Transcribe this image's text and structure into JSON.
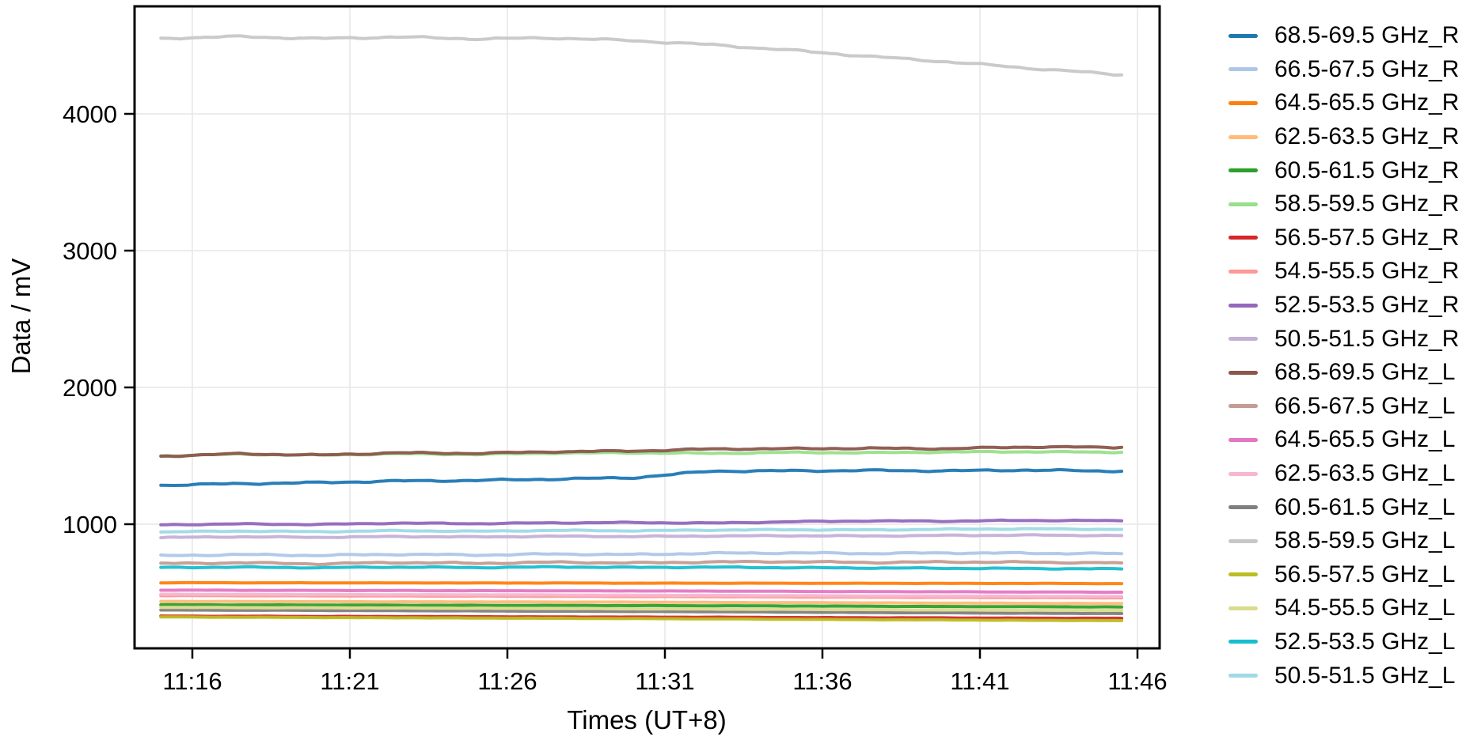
{
  "figure": {
    "background": "#ffffff",
    "plot_border_color": "#000000",
    "gridline_color": "#e6e6e6",
    "tick_color": "#000000",
    "text_color": "#000000"
  },
  "chart_data": {
    "type": "line",
    "title": "",
    "xlabel": "Times (UT+8)",
    "ylabel": "Data / mV",
    "grid": true,
    "legend_position": "right-outside",
    "x_tick_labels": [
      "11:16",
      "11:21",
      "11:26",
      "11:31",
      "11:36",
      "11:41",
      "11:46"
    ],
    "x_tick_minutes": [
      0,
      5,
      10,
      15,
      20,
      25,
      30
    ],
    "y_tick_labels": [
      "1000",
      "2000",
      "3000",
      "4000"
    ],
    "y_ticks": [
      1000,
      2000,
      3000,
      4000
    ],
    "xlim_minutes": [
      -1.85,
      30.7
    ],
    "ylim": [
      90,
      4790
    ],
    "x_minutes": [
      -1,
      1.5,
      4,
      6.5,
      9,
      11.5,
      14,
      16.5,
      19,
      21.5,
      24,
      26.5,
      29.5
    ],
    "series": [
      {
        "name": "68.5-69.5 GHz_R",
        "color": "#1f77b4",
        "wiggle": 7,
        "values": [
          1285,
          1296,
          1304,
          1316,
          1320,
          1330,
          1340,
          1388,
          1390,
          1393,
          1390,
          1396,
          1387
        ]
      },
      {
        "name": "66.5-67.5 GHz_R",
        "color": "#aec7e8",
        "wiggle": 6,
        "values": [
          770,
          778,
          772,
          780,
          775,
          782,
          778,
          788,
          790,
          786,
          790,
          788,
          785
        ]
      },
      {
        "name": "64.5-65.5 GHz_R",
        "color": "#ff7f0e",
        "wiggle": 1,
        "values": [
          572,
          572,
          571,
          571,
          570,
          570,
          569,
          569,
          568,
          568,
          567,
          567,
          566
        ]
      },
      {
        "name": "62.5-63.5 GHz_R",
        "color": "#ffbb78",
        "wiggle": 1,
        "values": [
          436,
          435,
          434,
          433,
          432,
          431,
          430,
          428,
          427,
          425,
          423,
          422,
          420
        ]
      },
      {
        "name": "60.5-61.5 GHz_R",
        "color": "#2ca02c",
        "wiggle": 1,
        "values": [
          411,
          410,
          409,
          408,
          407,
          406,
          405,
          404,
          402,
          400,
          398,
          397,
          395
        ]
      },
      {
        "name": "58.5-59.5 GHz_R",
        "color": "#98df8a",
        "wiggle": 5,
        "values": [
          1500,
          1512,
          1505,
          1515,
          1510,
          1520,
          1522,
          1518,
          1525,
          1522,
          1528,
          1530,
          1526
        ]
      },
      {
        "name": "56.5-57.5 GHz_R",
        "color": "#d62728",
        "wiggle": 1,
        "values": [
          328,
          327,
          326,
          325,
          324,
          322,
          321,
          320,
          318,
          316,
          315,
          313,
          312
        ]
      },
      {
        "name": "54.5-55.5 GHz_R",
        "color": "#ff9896",
        "wiggle": 1,
        "values": [
          478,
          477,
          476,
          475,
          474,
          472,
          471,
          470,
          468,
          466,
          465,
          463,
          462
        ]
      },
      {
        "name": "52.5-53.5 GHz_R",
        "color": "#9467bd",
        "wiggle": 4,
        "values": [
          996,
          1002,
          998,
          1008,
          1004,
          1010,
          1012,
          1008,
          1018,
          1024,
          1022,
          1028,
          1025
        ]
      },
      {
        "name": "50.5-51.5 GHz_R",
        "color": "#c5b0d5",
        "wiggle": 4,
        "values": [
          902,
          908,
          904,
          910,
          907,
          912,
          910,
          914,
          916,
          914,
          918,
          920,
          917
        ]
      },
      {
        "name": "68.5-69.5 GHz_L",
        "color": "#8c564b",
        "wiggle": 6,
        "values": [
          1497,
          1515,
          1505,
          1522,
          1518,
          1530,
          1535,
          1550,
          1552,
          1555,
          1552,
          1565,
          1562
        ]
      },
      {
        "name": "66.5-67.5 GHz_L",
        "color": "#c49c94",
        "wiggle": 6,
        "values": [
          712,
          718,
          710,
          720,
          714,
          722,
          716,
          724,
          726,
          720,
          724,
          722,
          717
        ]
      },
      {
        "name": "64.5-65.5 GHz_L",
        "color": "#e377c2",
        "wiggle": 1,
        "values": [
          518,
          517,
          516,
          515,
          514,
          513,
          512,
          511,
          509,
          507,
          506,
          504,
          503
        ]
      },
      {
        "name": "62.5-63.5 GHz_L",
        "color": "#f7b6d2",
        "wiggle": 1,
        "values": [
          488,
          487,
          486,
          485,
          484,
          483,
          481,
          480,
          478,
          476,
          475,
          473,
          472
        ]
      },
      {
        "name": "60.5-61.5 GHz_L",
        "color": "#7f7f7f",
        "wiggle": 1,
        "values": [
          373,
          371,
          370,
          368,
          366,
          364,
          362,
          360,
          357,
          354,
          352,
          349,
          347
        ]
      },
      {
        "name": "58.5-59.5 GHz_L",
        "color": "#c7c7c7",
        "wiggle": 8,
        "values": [
          4552,
          4565,
          4550,
          4562,
          4548,
          4555,
          4535,
          4505,
          4465,
          4420,
          4380,
          4335,
          4285
        ]
      },
      {
        "name": "56.5-57.5 GHz_L",
        "color": "#bcbd22",
        "wiggle": 1,
        "values": [
          322,
          320,
          318,
          316,
          314,
          312,
          310,
          308,
          305,
          302,
          300,
          297,
          295
        ]
      },
      {
        "name": "54.5-55.5 GHz_L",
        "color": "#dbdb8d",
        "wiggle": 1,
        "values": [
          392,
          390,
          389,
          387,
          385,
          383,
          381,
          379,
          377,
          375,
          373,
          371,
          370
        ]
      },
      {
        "name": "52.5-53.5 GHz_L",
        "color": "#17becf",
        "wiggle": 4,
        "values": [
          683,
          686,
          682,
          687,
          683,
          688,
          684,
          686,
          682,
          680,
          678,
          676,
          673
        ]
      },
      {
        "name": "50.5-51.5 GHz_L",
        "color": "#9edae5",
        "wiggle": 4,
        "values": [
          943,
          950,
          945,
          953,
          948,
          955,
          952,
          957,
          960,
          958,
          963,
          966,
          962
        ]
      }
    ]
  }
}
